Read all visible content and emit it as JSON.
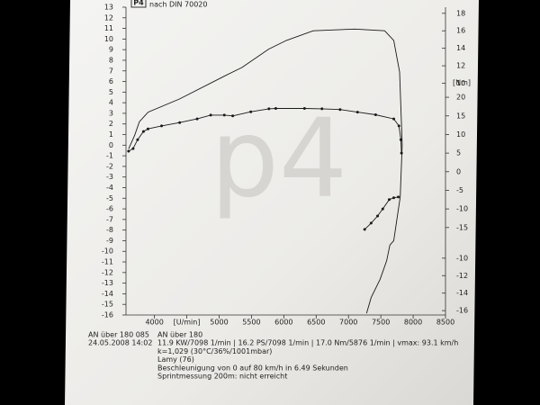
{
  "chart_data": {
    "type": "line",
    "logo": "P4",
    "subtitle": "nach DIN 70020",
    "watermark": "p4",
    "y2_label": "[Nm]",
    "xlim": [
      3560,
      8500
    ],
    "xticks": [
      4000,
      {
        "value": 4500,
        "label": "[U/min]"
      },
      5000,
      5500,
      6000,
      6500,
      7000,
      7500,
      8000,
      8500
    ],
    "ylim": [
      -16,
      13
    ],
    "yticks": [
      -16,
      -15,
      -14,
      -13,
      -12,
      -11,
      -10,
      -9,
      -8,
      -7,
      -6,
      -5,
      -4,
      -3,
      -2,
      -1,
      0,
      1,
      2,
      3,
      4,
      5,
      6,
      7,
      8,
      9,
      10,
      11,
      12,
      13
    ],
    "y2lim": [
      -38.5,
      44.2
    ],
    "y2ticks": [
      20,
      15,
      10,
      5,
      0,
      -5,
      -10,
      -15
    ],
    "y3lim": [
      -16.5,
      18.7
    ],
    "y3ticks": [
      18,
      16,
      14,
      12,
      10,
      -10,
      -12,
      -14,
      -16
    ],
    "series": [
      {
        "color": "#1a1a1a",
        "axis": "y3",
        "markers": false,
        "x": [
          3600,
          3697,
          3766,
          3903,
          4386,
          5076,
          5352,
          5766,
          6041,
          6455,
          7098,
          7560,
          7700,
          7790,
          7830,
          7800,
          7700,
          7640,
          7590,
          7490,
          7350,
          7280
        ],
        "values": [
          2.5,
          4.1,
          5.6,
          6.7,
          8.2,
          10.8,
          11.8,
          13.9,
          14.9,
          16.0,
          16.2,
          16.0,
          14.9,
          11.3,
          3,
          -3,
          -8,
          -8.5,
          -10.3,
          -12.4,
          -14.5,
          -16.3
        ]
      },
      {
        "color": "#1a1a1a",
        "axis": "y2",
        "markers": true,
        "x": [
          3600,
          3670,
          3740,
          3830,
          3900,
          4110,
          4390,
          4660,
          4870,
          5080,
          5210,
          5490,
          5770,
          5876,
          6320,
          6590,
          6870,
          7140,
          7420,
          7700,
          7780,
          7810,
          7820,
          null,
          7250,
          7350,
          7450,
          7530,
          7630,
          7700,
          7770
        ],
        "values": [
          5.5,
          6.2,
          8.6,
          10.8,
          11.5,
          12.3,
          13.2,
          14.2,
          15.2,
          15.2,
          15.0,
          16.1,
          16.9,
          17.0,
          17.0,
          16.9,
          16.7,
          16.0,
          15.3,
          14.2,
          12.3,
          8.6,
          5,
          null,
          -15.5,
          -13.8,
          -11.9,
          -10,
          -7.5,
          -7,
          -6.8
        ]
      }
    ]
  },
  "report": {
    "left_lines": [
      "AN über 180 085",
      "24.05.2008  14:02"
    ],
    "right_lines": [
      "AN über 180",
      "11.9 KW/7098 1/min  |  16.2 PS/7098 1/min  |  17.0 Nm/5876 1/min  | vmax: 93.1 km/h",
      "k=1,029 (30°C/36%/1001mbar)",
      "Lamy (76)",
      "Beschleunigung von 0 auf 80 km/h in 6.49 Sekunden",
      "Sprintmessung 200m: nicht erreicht"
    ]
  }
}
